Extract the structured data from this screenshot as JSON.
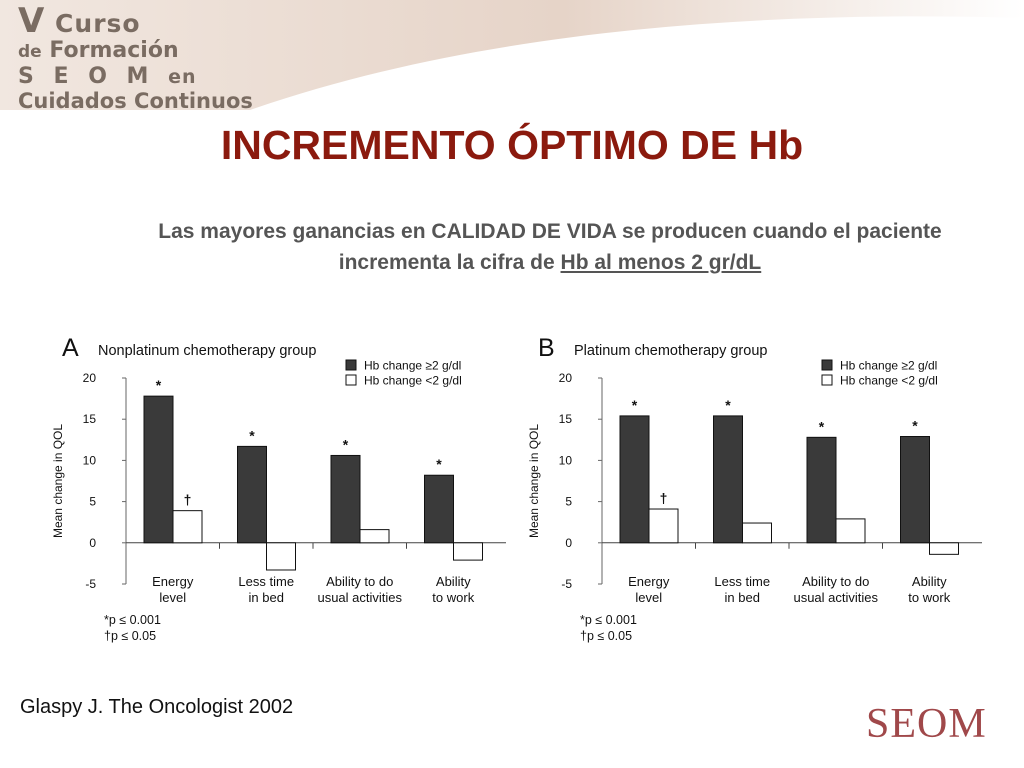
{
  "header": {
    "logo_line1_initial": "V",
    "logo_line1_rest": "Curso",
    "logo_line2_prefix": "de",
    "logo_line2_rest": "Formación",
    "logo_line3": "S E O M",
    "logo_line3_suffix": "en",
    "logo_line4": "Cuidados Continuos"
  },
  "slide": {
    "title": "INCREMENTO ÓPTIMO DE Hb",
    "subtitle_part1": "Las mayores ganancias en CALIDAD DE VIDA se producen  cuando  el paciente incrementa la cifra de ",
    "subtitle_underlined": "Hb al menos 2 gr/dL",
    "citation": "Glaspy J. The Oncologist 2002",
    "footer_logo": "SEOM"
  },
  "colors": {
    "title": "#8b1a0e",
    "subtitle": "#555555",
    "dark_bar": "#3a3a3a",
    "light_bar": "#ffffff",
    "footer_logo": "#a0484a"
  },
  "chart_data": [
    {
      "type": "bar",
      "panel_label": "A",
      "title": "Nonplatinum chemotherapy group",
      "ylabel": "Mean change in QOL",
      "ylim": [
        -5,
        20
      ],
      "yticks": [
        20,
        15,
        10,
        5,
        0,
        -5
      ],
      "grid": false,
      "legend_position": "top-right",
      "categories": [
        "Energy level",
        "Less time in bed",
        "Ability to do usual activities",
        "Ability to work"
      ],
      "category_lines": [
        [
          "Energy",
          "level"
        ],
        [
          "Less time",
          "in bed"
        ],
        [
          "Ability to do",
          "usual activities"
        ],
        [
          "Ability",
          "to work"
        ]
      ],
      "series": [
        {
          "name": "Hb change ≥2 g/dl",
          "values": [
            17.8,
            11.7,
            10.6,
            8.2
          ],
          "marks": [
            "*",
            "*",
            "*",
            "*"
          ]
        },
        {
          "name": "Hb change <2 g/dl",
          "values": [
            3.9,
            -3.3,
            1.6,
            -2.1
          ],
          "marks": [
            "†",
            "",
            "",
            ""
          ]
        }
      ],
      "footnotes": [
        "*p ≤ 0.001",
        "†p ≤ 0.05"
      ]
    },
    {
      "type": "bar",
      "panel_label": "B",
      "title": "Platinum chemotherapy group",
      "ylabel": "Mean change in QOL",
      "ylim": [
        -5,
        20
      ],
      "yticks": [
        20,
        15,
        10,
        5,
        0,
        -5
      ],
      "grid": false,
      "legend_position": "top-right",
      "categories": [
        "Energy level",
        "Less time in bed",
        "Ability to do usual activities",
        "Ability to work"
      ],
      "category_lines": [
        [
          "Energy",
          "level"
        ],
        [
          "Less time",
          "in bed"
        ],
        [
          "Ability to do",
          "usual activities"
        ],
        [
          "Ability",
          "to work"
        ]
      ],
      "series": [
        {
          "name": "Hb change ≥2 g/dl",
          "values": [
            15.4,
            15.4,
            12.8,
            12.9
          ],
          "marks": [
            "*",
            "*",
            "*",
            "*"
          ]
        },
        {
          "name": "Hb change <2 g/dl",
          "values": [
            4.1,
            2.4,
            2.9,
            -1.4
          ],
          "marks": [
            "†",
            "",
            "",
            ""
          ]
        }
      ],
      "footnotes": [
        "*p ≤ 0.001",
        "†p ≤ 0.05"
      ]
    }
  ]
}
